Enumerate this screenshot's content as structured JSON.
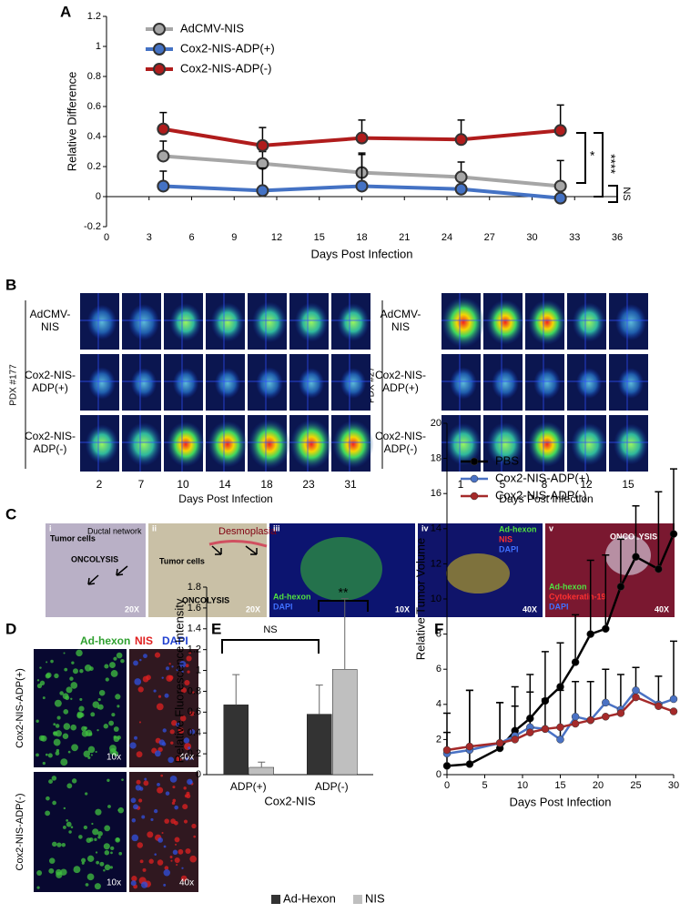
{
  "panel_labels": [
    "A",
    "B",
    "C",
    "D",
    "E",
    "F"
  ],
  "chart_data": [
    {
      "type": "line",
      "xlabel": "Days Post Infection",
      "ylabel": "Relative Difference",
      "x": [
        4,
        11,
        18,
        25,
        32
      ],
      "xlim": [
        0,
        36
      ],
      "xticks": [
        0,
        3,
        6,
        9,
        12,
        15,
        18,
        21,
        24,
        27,
        30,
        33,
        36
      ],
      "ylim": [
        -0.2,
        1.2
      ],
      "yticks": [
        -0.2,
        0,
        0.2,
        0.4,
        0.6,
        0.8,
        1,
        1.2
      ],
      "series": [
        {
          "name": "AdCMV-NIS",
          "color": "#a6a6a6",
          "values": [
            0.27,
            0.22,
            0.16,
            0.13,
            0.07
          ],
          "errors": [
            0.1,
            0.08,
            0.12,
            0.1,
            0.17
          ]
        },
        {
          "name": "Cox2-NIS-ADP(+)",
          "color": "#4472c4",
          "values": [
            0.07,
            0.04,
            0.07,
            0.05,
            -0.01
          ],
          "errors": [
            0.1,
            0.15,
            0.22,
            0.0,
            0.0
          ]
        },
        {
          "name": "Cox2-NIS-ADP(-)",
          "color": "#b01c1c",
          "values": [
            0.45,
            0.34,
            0.39,
            0.38,
            0.44
          ],
          "errors": [
            0.11,
            0.12,
            0.12,
            0.13,
            0.17
          ]
        }
      ],
      "annotations": [
        "*",
        "****",
        "NS"
      ]
    },
    {
      "type": "bar",
      "xlabel": "Cox2-NIS",
      "ylabel": "Relative Fluorescence Intensity",
      "categories": [
        "ADP(+)",
        "ADP(-)"
      ],
      "ylim": [
        0,
        1.8
      ],
      "yticks": [
        0,
        0.2,
        0.4,
        0.6,
        0.8,
        1,
        1.2,
        1.4,
        1.6,
        1.8
      ],
      "series": [
        {
          "name": "Ad-Hexon",
          "color": "#333333",
          "values": [
            0.67,
            0.58
          ],
          "errors": [
            0.29,
            0.28
          ]
        },
        {
          "name": "NIS",
          "color": "#bfbfbf",
          "values": [
            0.07,
            1.01
          ],
          "errors": [
            0.05,
            0.68
          ]
        }
      ],
      "annotations": [
        "NS",
        "**"
      ]
    },
    {
      "type": "line",
      "xlabel": "Days Post Infection",
      "ylabel": "Relative Tumor Volume",
      "x": [
        0,
        3,
        7,
        9,
        11,
        13,
        15,
        17,
        19,
        21,
        23,
        25,
        28,
        30
      ],
      "xlim": [
        0,
        30
      ],
      "xticks": [
        0,
        5,
        10,
        15,
        20,
        25,
        30
      ],
      "ylim": [
        0,
        20
      ],
      "yticks": [
        0,
        2,
        4,
        6,
        8,
        10,
        12,
        14,
        16,
        18,
        20
      ],
      "series": [
        {
          "name": "PBS",
          "color": "#000000",
          "values": [
            0.5,
            0.6,
            1.5,
            2.5,
            3.2,
            4.2,
            5.0,
            6.4,
            8.0,
            8.3,
            10.7,
            12.4,
            11.7,
            13.7
          ],
          "errors": [
            3.0,
            4.2,
            2.6,
            2.5,
            2.5,
            2.8,
            2.5,
            2.7,
            4.2,
            4.2,
            2.7,
            2.9,
            4.4,
            3.7
          ]
        },
        {
          "name": "Cox2-NIS-ADP(+)",
          "color": "#4a72c4",
          "values": [
            1.2,
            1.4,
            1.8,
            2.2,
            2.7,
            2.6,
            2.0,
            3.3,
            3.1,
            4.1,
            3.7,
            4.8,
            4.0,
            4.3
          ],
          "errors": [
            1.2,
            3.4,
            2.3,
            1.7,
            2.0,
            1.7,
            2.8,
            2.0,
            2.2,
            1.9,
            2.0,
            1.3,
            1.6,
            3.3
          ]
        },
        {
          "name": "Cox2-NIS-ADP(-)",
          "color": "#a52a2a",
          "values": [
            1.4,
            1.6,
            1.8,
            2.0,
            2.4,
            2.6,
            2.7,
            2.9,
            3.1,
            3.3,
            3.5,
            4.4,
            3.9,
            3.6
          ],
          "errors": [
            0,
            0,
            0,
            0,
            0,
            0,
            0,
            0,
            0,
            0,
            0,
            0,
            0,
            0
          ]
        }
      ]
    }
  ],
  "panel_b": {
    "xlabel": "Days Post Infection",
    "groups": [
      {
        "name": "PDX #177",
        "rows": [
          [
            "AdCMV-",
            "NIS"
          ],
          [
            "Cox2-NIS-",
            "ADP(+)"
          ],
          [
            "Cox2-NIS-",
            "ADP(-)"
          ]
        ],
        "days": [
          2,
          7,
          10,
          14,
          18,
          23,
          31
        ]
      },
      {
        "name": "PDX #27",
        "rows": [
          [
            "AdCMV-",
            "NIS"
          ],
          [
            "Cox2-NIS-",
            "ADP(+)"
          ],
          [
            "Cox2-NIS-",
            "ADP(-)"
          ]
        ],
        "days": [
          1,
          5,
          8,
          12,
          15
        ]
      }
    ]
  },
  "panel_c": {
    "tiles": [
      {
        "numeral": "i",
        "labels": [
          "Tumor cells",
          "Ductal network",
          "ONCOLYSIS",
          "20X"
        ]
      },
      {
        "numeral": "ii",
        "labels": [
          "Desmoplasia",
          "Tumor cells",
          "ONCOLYSIS",
          "20X"
        ]
      },
      {
        "numeral": "iii",
        "labels": [
          "Ad-hexon",
          "DAPI",
          "10X"
        ]
      },
      {
        "numeral": "iv",
        "labels": [
          "Ad-hexon",
          "NIS",
          "DAPI",
          "40X"
        ]
      },
      {
        "numeral": "v",
        "labels": [
          "ONCOLYSIS",
          "Ad-hexon",
          "Cytokeratin-19",
          "DAPI",
          "40X"
        ]
      }
    ]
  },
  "panel_d": {
    "stains": [
      "Ad-hexon",
      "NIS",
      "DAPI"
    ],
    "rows": [
      "Cox2-NIS-ADP(+)",
      "Cox2-NIS-ADP(-)"
    ],
    "magnifications": [
      "10x",
      "40x"
    ]
  }
}
